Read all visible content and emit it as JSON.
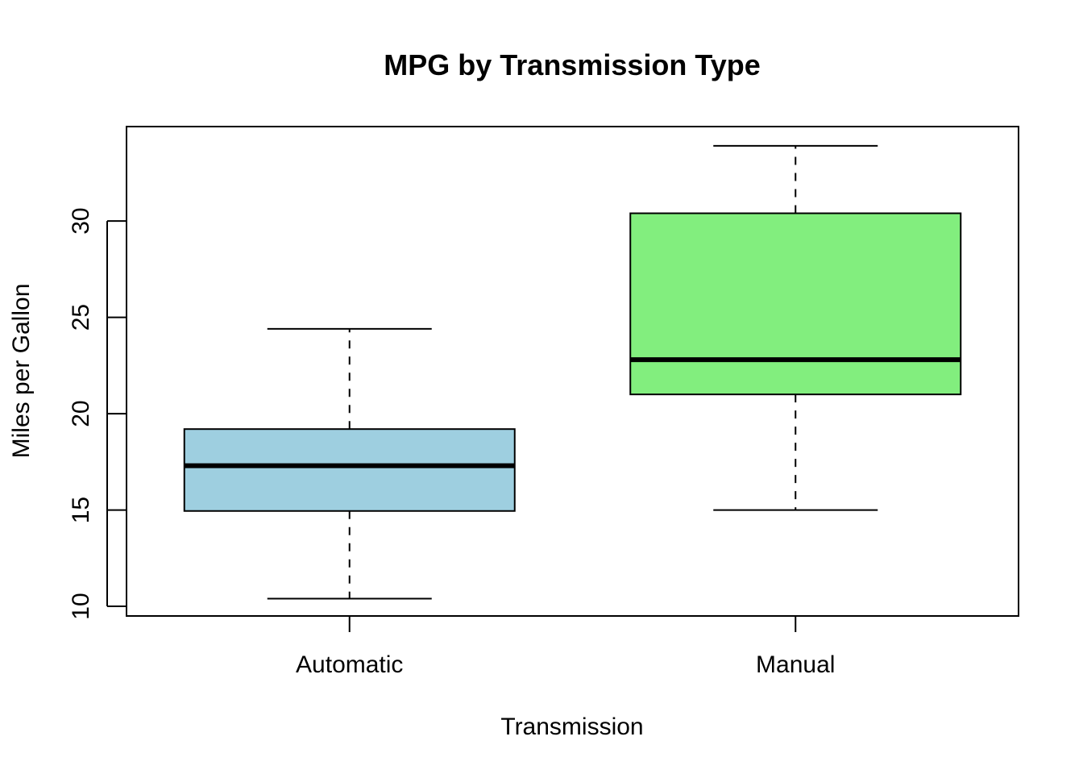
{
  "chart_data": {
    "type": "boxplot",
    "title": "MPG by Transmission Type",
    "xlabel": "Transmission",
    "ylabel": "Miles per Gallon",
    "categories": [
      "Automatic",
      "Manual"
    ],
    "ylim": [
      9.5,
      34.9
    ],
    "yticks": [
      10,
      15,
      20,
      25,
      30
    ],
    "grid": false,
    "boxes": [
      {
        "category": "Automatic",
        "min": 10.4,
        "q1": 14.95,
        "median": 17.3,
        "q3": 19.2,
        "max": 24.4,
        "color": "#9ecfe0"
      },
      {
        "category": "Manual",
        "min": 15.0,
        "q1": 21.0,
        "median": 22.8,
        "q3": 30.4,
        "max": 33.9,
        "color": "#82ee7e"
      }
    ]
  }
}
